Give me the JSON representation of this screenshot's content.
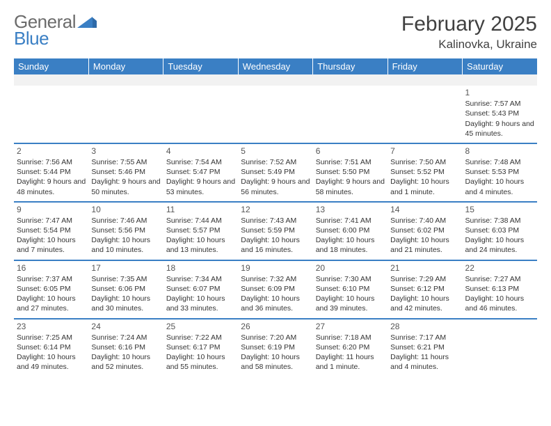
{
  "logo": {
    "word1": "General",
    "word2": "Blue"
  },
  "title": "February 2025",
  "location": "Kalinovka, Ukraine",
  "colors": {
    "header_bg": "#3a7fc4",
    "header_text": "#ffffff",
    "body_text": "#333333",
    "daynum_text": "#555555",
    "empty_bg": "#f2f2f2",
    "title_text": "#404040",
    "logo_gray": "#6b6b6b",
    "logo_blue": "#3a7fc4"
  },
  "columns": [
    "Sunday",
    "Monday",
    "Tuesday",
    "Wednesday",
    "Thursday",
    "Friday",
    "Saturday"
  ],
  "weeks": [
    [
      null,
      null,
      null,
      null,
      null,
      null,
      {
        "d": "1",
        "sr": "Sunrise: 7:57 AM",
        "ss": "Sunset: 5:43 PM",
        "dl": "Daylight: 9 hours and 45 minutes."
      }
    ],
    [
      {
        "d": "2",
        "sr": "Sunrise: 7:56 AM",
        "ss": "Sunset: 5:44 PM",
        "dl": "Daylight: 9 hours and 48 minutes."
      },
      {
        "d": "3",
        "sr": "Sunrise: 7:55 AM",
        "ss": "Sunset: 5:46 PM",
        "dl": "Daylight: 9 hours and 50 minutes."
      },
      {
        "d": "4",
        "sr": "Sunrise: 7:54 AM",
        "ss": "Sunset: 5:47 PM",
        "dl": "Daylight: 9 hours and 53 minutes."
      },
      {
        "d": "5",
        "sr": "Sunrise: 7:52 AM",
        "ss": "Sunset: 5:49 PM",
        "dl": "Daylight: 9 hours and 56 minutes."
      },
      {
        "d": "6",
        "sr": "Sunrise: 7:51 AM",
        "ss": "Sunset: 5:50 PM",
        "dl": "Daylight: 9 hours and 58 minutes."
      },
      {
        "d": "7",
        "sr": "Sunrise: 7:50 AM",
        "ss": "Sunset: 5:52 PM",
        "dl": "Daylight: 10 hours and 1 minute."
      },
      {
        "d": "8",
        "sr": "Sunrise: 7:48 AM",
        "ss": "Sunset: 5:53 PM",
        "dl": "Daylight: 10 hours and 4 minutes."
      }
    ],
    [
      {
        "d": "9",
        "sr": "Sunrise: 7:47 AM",
        "ss": "Sunset: 5:54 PM",
        "dl": "Daylight: 10 hours and 7 minutes."
      },
      {
        "d": "10",
        "sr": "Sunrise: 7:46 AM",
        "ss": "Sunset: 5:56 PM",
        "dl": "Daylight: 10 hours and 10 minutes."
      },
      {
        "d": "11",
        "sr": "Sunrise: 7:44 AM",
        "ss": "Sunset: 5:57 PM",
        "dl": "Daylight: 10 hours and 13 minutes."
      },
      {
        "d": "12",
        "sr": "Sunrise: 7:43 AM",
        "ss": "Sunset: 5:59 PM",
        "dl": "Daylight: 10 hours and 16 minutes."
      },
      {
        "d": "13",
        "sr": "Sunrise: 7:41 AM",
        "ss": "Sunset: 6:00 PM",
        "dl": "Daylight: 10 hours and 18 minutes."
      },
      {
        "d": "14",
        "sr": "Sunrise: 7:40 AM",
        "ss": "Sunset: 6:02 PM",
        "dl": "Daylight: 10 hours and 21 minutes."
      },
      {
        "d": "15",
        "sr": "Sunrise: 7:38 AM",
        "ss": "Sunset: 6:03 PM",
        "dl": "Daylight: 10 hours and 24 minutes."
      }
    ],
    [
      {
        "d": "16",
        "sr": "Sunrise: 7:37 AM",
        "ss": "Sunset: 6:05 PM",
        "dl": "Daylight: 10 hours and 27 minutes."
      },
      {
        "d": "17",
        "sr": "Sunrise: 7:35 AM",
        "ss": "Sunset: 6:06 PM",
        "dl": "Daylight: 10 hours and 30 minutes."
      },
      {
        "d": "18",
        "sr": "Sunrise: 7:34 AM",
        "ss": "Sunset: 6:07 PM",
        "dl": "Daylight: 10 hours and 33 minutes."
      },
      {
        "d": "19",
        "sr": "Sunrise: 7:32 AM",
        "ss": "Sunset: 6:09 PM",
        "dl": "Daylight: 10 hours and 36 minutes."
      },
      {
        "d": "20",
        "sr": "Sunrise: 7:30 AM",
        "ss": "Sunset: 6:10 PM",
        "dl": "Daylight: 10 hours and 39 minutes."
      },
      {
        "d": "21",
        "sr": "Sunrise: 7:29 AM",
        "ss": "Sunset: 6:12 PM",
        "dl": "Daylight: 10 hours and 42 minutes."
      },
      {
        "d": "22",
        "sr": "Sunrise: 7:27 AM",
        "ss": "Sunset: 6:13 PM",
        "dl": "Daylight: 10 hours and 46 minutes."
      }
    ],
    [
      {
        "d": "23",
        "sr": "Sunrise: 7:25 AM",
        "ss": "Sunset: 6:14 PM",
        "dl": "Daylight: 10 hours and 49 minutes."
      },
      {
        "d": "24",
        "sr": "Sunrise: 7:24 AM",
        "ss": "Sunset: 6:16 PM",
        "dl": "Daylight: 10 hours and 52 minutes."
      },
      {
        "d": "25",
        "sr": "Sunrise: 7:22 AM",
        "ss": "Sunset: 6:17 PM",
        "dl": "Daylight: 10 hours and 55 minutes."
      },
      {
        "d": "26",
        "sr": "Sunrise: 7:20 AM",
        "ss": "Sunset: 6:19 PM",
        "dl": "Daylight: 10 hours and 58 minutes."
      },
      {
        "d": "27",
        "sr": "Sunrise: 7:18 AM",
        "ss": "Sunset: 6:20 PM",
        "dl": "Daylight: 11 hours and 1 minute."
      },
      {
        "d": "28",
        "sr": "Sunrise: 7:17 AM",
        "ss": "Sunset: 6:21 PM",
        "dl": "Daylight: 11 hours and 4 minutes."
      },
      null
    ]
  ]
}
